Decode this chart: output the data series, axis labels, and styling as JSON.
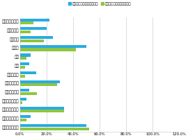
{
  "categories": [
    "お酒を飲まない",
    "リキュール",
    "カクテル",
    "日本酒",
    "焼酉",
    "梅酒",
    "ハイボール",
    "海外のワイン",
    "日本のワイン",
    "海外の缶ビール",
    "日本の缶ビール",
    "海外の生ビール",
    "日本の生ビール"
  ],
  "blue_values": [
    0.22,
    0.2,
    0.25,
    0.5,
    0.08,
    0.07,
    0.12,
    0.3,
    0.07,
    0.05,
    0.33,
    0.08,
    0.5
  ],
  "green_values": [
    0.1,
    0.08,
    0.18,
    0.42,
    0.05,
    0.04,
    0.04,
    0.28,
    0.13,
    0.02,
    0.33,
    0.05,
    0.52
  ],
  "blue_color": "#29ABE2",
  "green_color": "#8DC63F",
  "legend_blue": "日本を訪れたことがある人",
  "legend_green": "日本を訪れたことがない人",
  "xlim": [
    0,
    1.2
  ],
  "xticks": [
    0.0,
    0.2,
    0.4,
    0.6,
    0.8,
    1.0,
    1.2
  ],
  "xticklabels": [
    "0.0%",
    "20.0%",
    "40.0%",
    "60.0%",
    "80.0%",
    "100.0%",
    "120.0%"
  ],
  "bar_height": 0.32,
  "bar_gap": 0.05,
  "background_color": "#ffffff",
  "grid_color": "#d0d0d0",
  "figsize": [
    2.7,
    1.99
  ],
  "dpi": 100
}
